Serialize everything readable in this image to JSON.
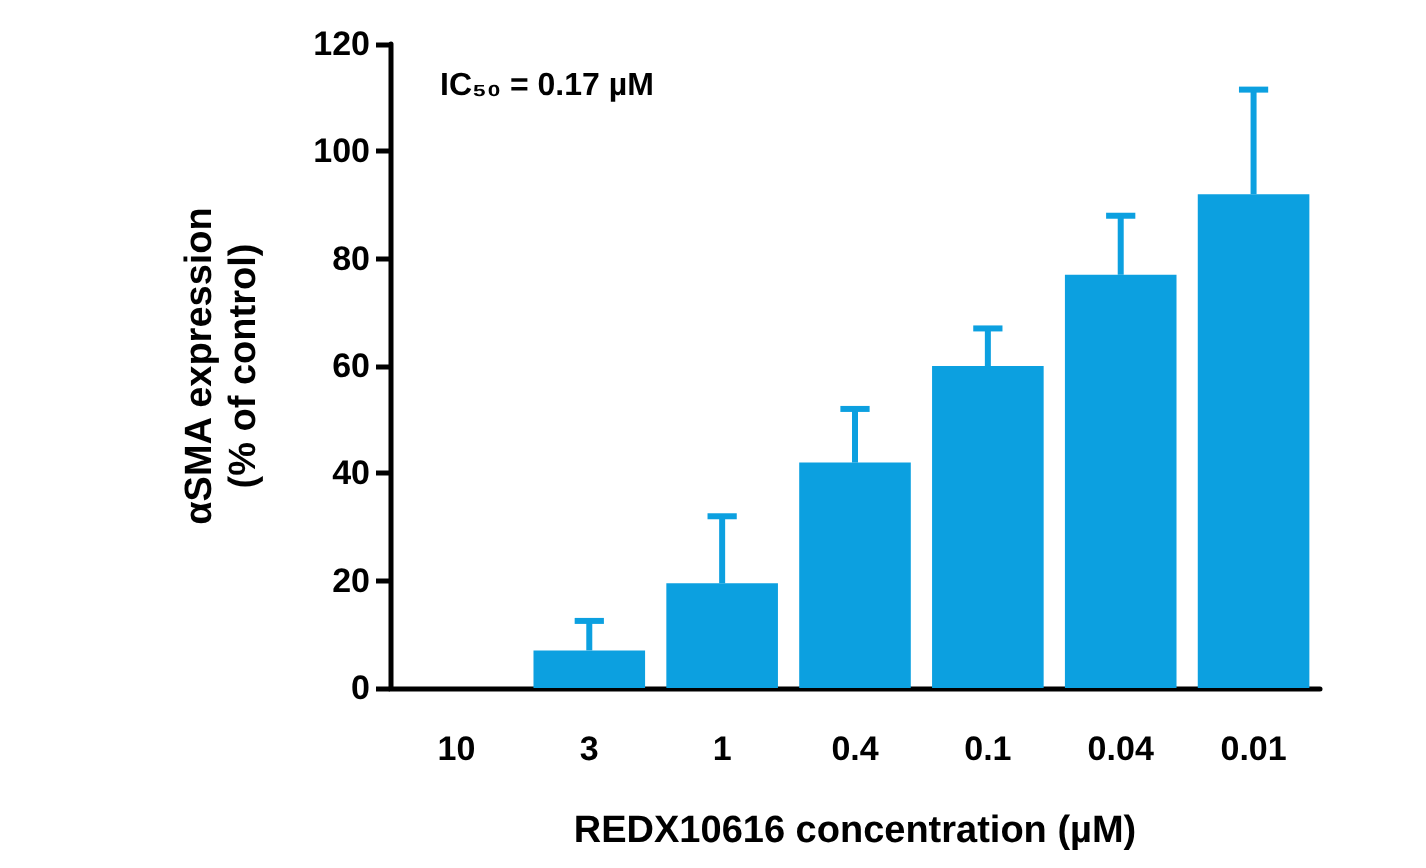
{
  "chart_data": {
    "type": "bar",
    "xlabel": "REDX10616 concentration (µM)",
    "ylabel": "αSMA expression\n(% of control)",
    "categories": [
      "10",
      "3",
      "1",
      "0.4",
      "0.1",
      "0.04",
      "0.01"
    ],
    "values": [
      0,
      7,
      19.5,
      42,
      60,
      77,
      92
    ],
    "errors": [
      null,
      [
        7,
        12.5
      ],
      [
        19.5,
        32
      ],
      [
        42,
        52
      ],
      [
        60,
        67
      ],
      [
        77,
        88
      ],
      [
        92,
        111.5
      ]
    ],
    "color": "#0ca0e0",
    "ylim": [
      0,
      120
    ],
    "yticks": [
      0,
      20,
      40,
      60,
      80,
      100,
      120
    ],
    "grid": false,
    "annotations": [
      {
        "text": "IC₅₀ = 0.17 µM"
      }
    ]
  }
}
